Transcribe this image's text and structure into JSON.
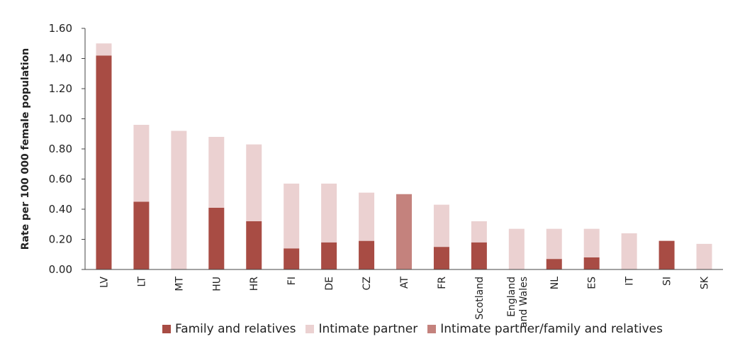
{
  "chart_data": {
    "type": "bar",
    "stacked": true,
    "title": "",
    "xlabel": "",
    "ylabel": "Rate per 100 000 female population",
    "ylim": [
      0,
      1.6
    ],
    "yticks": [
      "0.00",
      "0.20",
      "0.40",
      "0.60",
      "0.80",
      "1.00",
      "1.20",
      "1.40",
      "1.60"
    ],
    "categories": [
      "LV",
      "LT",
      "MT",
      "HU",
      "HR",
      "FI",
      "DE",
      "CZ",
      "AT",
      "FR",
      "Scotland",
      "England and Wales",
      "NL",
      "ES",
      "IT",
      "SI",
      "SK"
    ],
    "series": [
      {
        "name": "Family and relatives",
        "color": "#a84c44",
        "values": [
          1.42,
          0.45,
          0,
          0.41,
          0.32,
          0.14,
          0.18,
          0.19,
          0,
          0.15,
          0.18,
          0,
          0.07,
          0.08,
          0,
          0.19,
          0
        ]
      },
      {
        "name": "Intimate partner",
        "color": "#ebd1d1",
        "values": [
          0.08,
          0.51,
          0.92,
          0.47,
          0.51,
          0.43,
          0.39,
          0.32,
          0,
          0.28,
          0.14,
          0.27,
          0.2,
          0.19,
          0.24,
          0,
          0.17
        ]
      },
      {
        "name": "Intimate partner/family and relatives",
        "color": "#c4827d",
        "values": [
          0,
          0,
          0,
          0,
          0,
          0,
          0,
          0,
          0.5,
          0,
          0,
          0,
          0,
          0,
          0,
          0,
          0
        ]
      }
    ],
    "grid": false,
    "legend_position": "bottom"
  }
}
